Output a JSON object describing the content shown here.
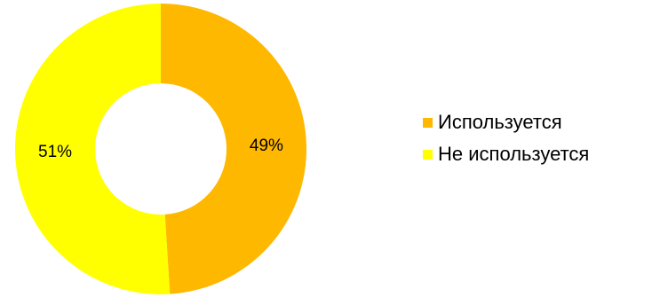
{
  "chart_data": {
    "type": "pie",
    "donut": true,
    "categories": [
      "Используется",
      "Не используется"
    ],
    "values": [
      49,
      51
    ],
    "labels": [
      "49%",
      "51%"
    ],
    "colors": [
      "#FFB800",
      "#FFFF00"
    ],
    "legend_position": "right",
    "title": ""
  }
}
